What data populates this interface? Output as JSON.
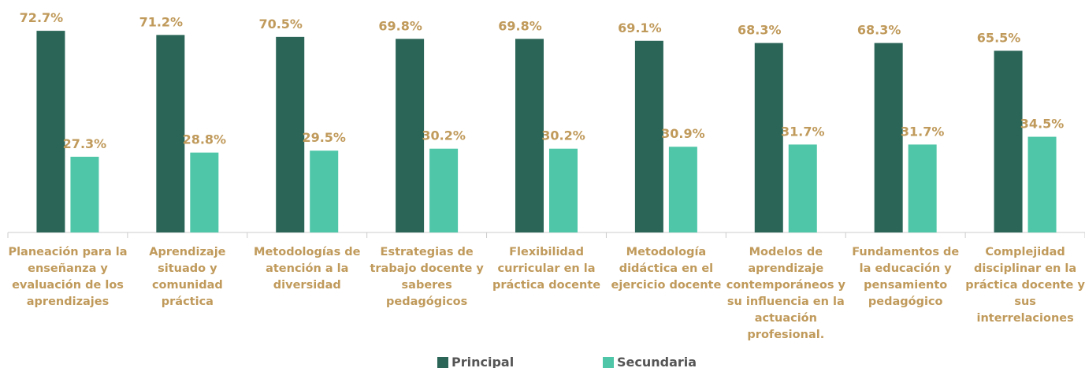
{
  "chart_data": {
    "type": "bar",
    "categories": [
      "Planeación para la enseñanza y evaluación de los aprendizajes",
      "Aprendizaje situado y comunidad práctica",
      "Metodologías de atención a la diversidad",
      "Estrategias de trabajo docente y saberes pedagógicos",
      "Flexibilidad curricular en la práctica docente",
      "Metodología didáctica en el ejercicio docente",
      "Modelos de aprendizaje contemporáneos y su influencia en la actuación profesional.",
      "Fundamentos de la educación y pensamiento pedagógico",
      "Complejidad disciplinar en la práctica docente y sus interrelaciones"
    ],
    "series": [
      {
        "name": "Principal",
        "color": "#2a6557",
        "values": [
          72.7,
          71.2,
          70.5,
          69.8,
          69.8,
          69.1,
          68.3,
          68.3,
          65.5
        ],
        "value_labels": [
          "72.7%",
          "71.2%",
          "70.5%",
          "69.8%",
          "69.8%",
          "69.1%",
          "68.3%",
          "68.3%",
          "65.5%"
        ]
      },
      {
        "name": "Secundaria",
        "color": "#4fc6a8",
        "values": [
          27.3,
          28.8,
          29.5,
          30.2,
          30.2,
          30.9,
          31.7,
          31.7,
          34.5
        ],
        "value_labels": [
          "27.3%",
          "28.8%",
          "29.5%",
          "30.2%",
          "30.2%",
          "30.9%",
          "31.7%",
          "31.7%",
          "34.5%"
        ]
      }
    ],
    "ylim": [
      0,
      80
    ],
    "grid": false,
    "legend": "bottom",
    "label_color": "#c09a5b"
  }
}
